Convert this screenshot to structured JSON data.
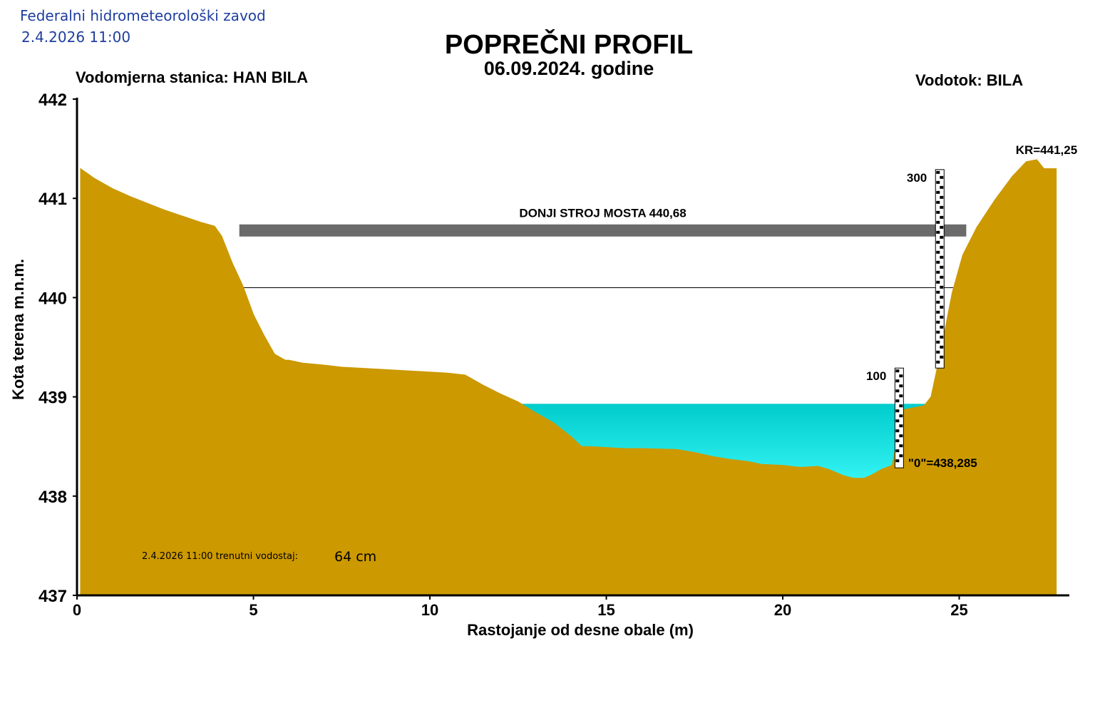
{
  "header": {
    "agency": "Federalni hidrometeorološki zavod",
    "datetime": "2.4.2026 11:00"
  },
  "chart_data": {
    "type": "area",
    "title": "POPREČNI PROFIL",
    "subtitle": "06.09.2024. godine",
    "station_label": "Vodomjerna stanica: HAN BILA",
    "river_label": "Vodotok: BILA",
    "xlabel": "Rastojanje od desne obale (m)",
    "ylabel": "Kota terena m.n.m.",
    "xlim": [
      0,
      28
    ],
    "ylim": [
      437,
      442
    ],
    "x_ticks": [
      "0",
      "5",
      "10",
      "15",
      "20",
      "25"
    ],
    "y_ticks": [
      "437",
      "438",
      "439",
      "440",
      "441",
      "442"
    ],
    "terrain": {
      "x": [
        0.1,
        0.5,
        1.0,
        1.5,
        2.0,
        2.5,
        3.0,
        3.5,
        3.9,
        4.1,
        4.4,
        4.7,
        5.0,
        5.3,
        5.6,
        5.9,
        6.0,
        6.4,
        7.0,
        7.5,
        8.0,
        8.5,
        9.0,
        9.5,
        10.0,
        10.5,
        11.0,
        11.5,
        12.0,
        12.5,
        13.0,
        13.5,
        14.0,
        14.3,
        14.5,
        15.0,
        15.5,
        16.0,
        17.0,
        17.5,
        18.0,
        18.5,
        19.0,
        19.4,
        20.0,
        20.5,
        21.0,
        21.3,
        21.7,
        22.0,
        22.3,
        22.5,
        22.8,
        23.1,
        23.4,
        24.0,
        24.2,
        24.5,
        24.8,
        25.1,
        25.5,
        26.0,
        26.5,
        26.9,
        27.2,
        27.4,
        27.75
      ],
      "y": [
        441.3,
        441.2,
        441.1,
        441.02,
        440.95,
        440.88,
        440.82,
        440.76,
        440.72,
        440.62,
        440.35,
        440.12,
        439.83,
        439.62,
        439.43,
        439.37,
        439.37,
        439.34,
        439.32,
        439.3,
        439.29,
        439.28,
        439.27,
        439.26,
        439.25,
        439.24,
        439.22,
        439.12,
        439.03,
        438.95,
        438.84,
        438.74,
        438.6,
        438.5,
        438.5,
        438.49,
        438.48,
        438.48,
        438.47,
        438.44,
        438.4,
        438.37,
        438.35,
        438.32,
        438.31,
        438.29,
        438.3,
        438.27,
        438.21,
        438.18,
        438.18,
        438.21,
        438.27,
        438.31,
        438.87,
        438.91,
        439.0,
        439.5,
        440.05,
        440.43,
        440.71,
        440.98,
        441.22,
        441.37,
        441.39,
        441.3,
        441.3
      ]
    },
    "water_level": 438.93,
    "bridge": {
      "label": "DONJI STROJ MOSTA 440,68",
      "elevation": 440.68,
      "x_start": 4.6,
      "x_end": 25.2
    },
    "reference_line": 440.1,
    "gauges": [
      {
        "label": "100",
        "x": 23.3,
        "bottom": 438.285,
        "top": 439.29
      },
      {
        "label": "300",
        "x": 24.45,
        "bottom": 439.29,
        "top": 441.29
      }
    ],
    "zero_label": "\"0\"=438,285",
    "kr_label": "KR=441,25",
    "colors": {
      "terrain": "#cc9900",
      "water_top": "#00cccc",
      "water_bottom": "#33f2f2",
      "bridge": "#6b6b6b"
    }
  },
  "current": {
    "label": "2.4.2026 11:00 trenutni vodostaj:",
    "value": "64 cm"
  }
}
